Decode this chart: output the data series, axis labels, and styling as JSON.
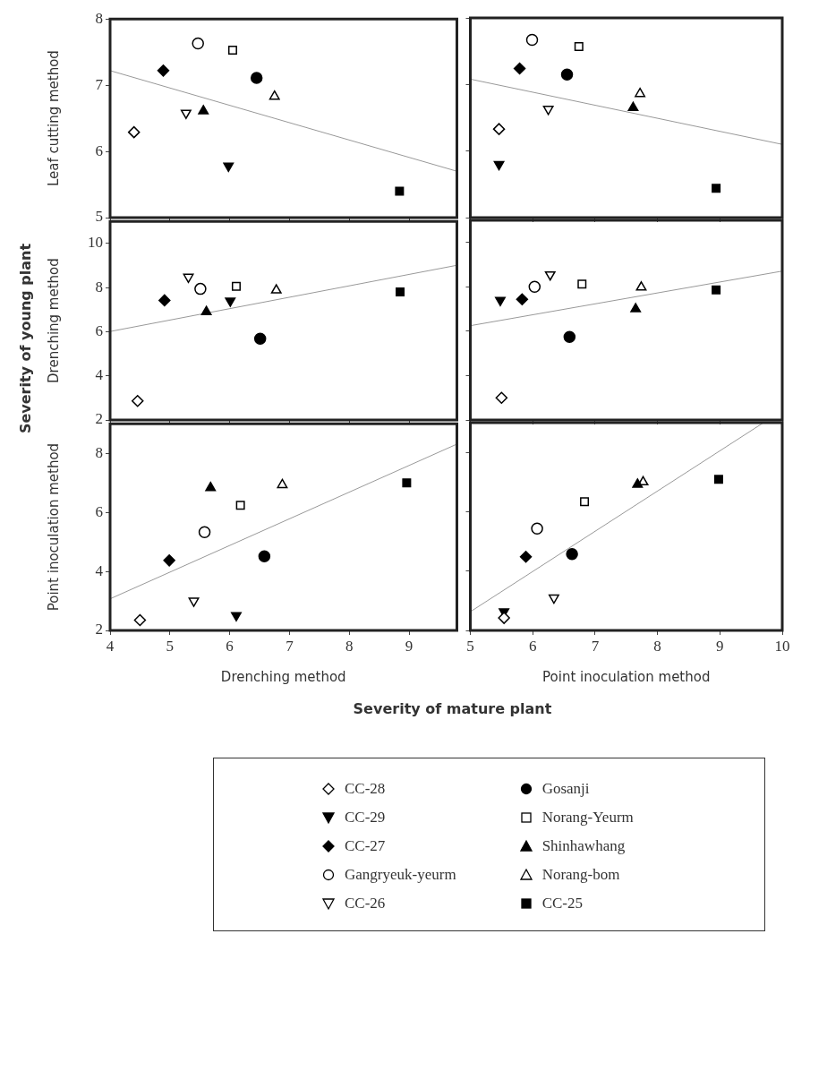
{
  "chart_data": [
    {
      "type": "scatter",
      "ylabel": "Leaf cutting method",
      "xlim": [
        4,
        9.8
      ],
      "xticks": [
        4,
        5,
        6,
        7,
        8,
        9
      ],
      "ylim": [
        5,
        8
      ],
      "yticks": [
        5,
        6,
        7,
        8
      ],
      "tick_labels": "y",
      "series": [
        {
          "marker": "diamond",
          "color": "#ffffff",
          "x": [
            4.4
          ],
          "values": [
            6.29
          ]
        },
        {
          "marker": "triangle-down",
          "color": "#000000",
          "x": [
            5.98
          ],
          "values": [
            5.78
          ]
        },
        {
          "marker": "diamond",
          "color": "#000000",
          "x": [
            4.89
          ],
          "values": [
            7.22
          ]
        },
        {
          "marker": "circle",
          "color": "#ffffff",
          "x": [
            5.47
          ],
          "values": [
            7.63
          ]
        },
        {
          "marker": "triangle-down",
          "color": "#ffffff",
          "x": [
            5.27
          ],
          "values": [
            6.58
          ]
        },
        {
          "marker": "circle",
          "color": "#000000",
          "x": [
            6.45
          ],
          "values": [
            7.11
          ]
        },
        {
          "marker": "square",
          "color": "#ffffff",
          "x": [
            6.05
          ],
          "values": [
            7.53
          ]
        },
        {
          "marker": "triangle",
          "color": "#000000",
          "x": [
            5.56
          ],
          "values": [
            6.61
          ]
        },
        {
          "marker": "triangle",
          "color": "#ffffff",
          "x": [
            6.75
          ],
          "values": [
            6.83
          ]
        },
        {
          "marker": "square",
          "color": "#000000",
          "x": [
            8.84
          ],
          "values": [
            5.4
          ]
        },
        {
          "type": "line",
          "marker": "none",
          "color": "#999999",
          "x": [
            4,
            9.8
          ],
          "values": [
            7.22,
            5.7
          ]
        }
      ]
    },
    {
      "type": "scatter",
      "xlim": [
        5,
        10
      ],
      "xticks": [
        5,
        6,
        7,
        8,
        9,
        10
      ],
      "ylim": [
        5,
        8
      ],
      "yticks": [
        5,
        6,
        7,
        8
      ],
      "tick_labels": false,
      "series": [
        {
          "marker": "diamond",
          "color": "#ffffff",
          "x": [
            5.46
          ],
          "values": [
            6.33
          ]
        },
        {
          "marker": "triangle-down",
          "color": "#000000",
          "x": [
            5.46
          ],
          "values": [
            5.8
          ]
        },
        {
          "marker": "diamond",
          "color": "#000000",
          "x": [
            5.79
          ],
          "values": [
            7.24
          ]
        },
        {
          "marker": "circle",
          "color": "#ffffff",
          "x": [
            5.99
          ],
          "values": [
            7.67
          ]
        },
        {
          "marker": "triangle-down",
          "color": "#ffffff",
          "x": [
            6.25
          ],
          "values": [
            6.63
          ]
        },
        {
          "marker": "circle",
          "color": "#000000",
          "x": [
            6.55
          ],
          "values": [
            7.15
          ]
        },
        {
          "marker": "square",
          "color": "#ffffff",
          "x": [
            6.74
          ],
          "values": [
            7.57
          ]
        },
        {
          "marker": "triangle",
          "color": "#000000",
          "x": [
            7.61
          ],
          "values": [
            6.65
          ]
        },
        {
          "marker": "triangle",
          "color": "#ffffff",
          "x": [
            7.72
          ],
          "values": [
            6.86
          ]
        },
        {
          "marker": "square",
          "color": "#000000",
          "x": [
            8.94
          ],
          "values": [
            5.44
          ]
        },
        {
          "type": "line",
          "marker": "none",
          "color": "#999999",
          "x": [
            5,
            10
          ],
          "values": [
            7.08,
            6.1
          ]
        }
      ]
    },
    {
      "type": "scatter",
      "ylabel": "Drenching method",
      "xlim": [
        4,
        9.8
      ],
      "xticks": [
        4,
        5,
        6,
        7,
        8,
        9
      ],
      "ylim": [
        2,
        11
      ],
      "yticks": [
        2,
        4,
        6,
        8,
        10
      ],
      "tick_labels": "y",
      "annotations": [
        "Severity of young plant"
      ],
      "series": [
        {
          "marker": "diamond",
          "color": "#ffffff",
          "x": [
            4.46
          ],
          "values": [
            2.86
          ]
        },
        {
          "marker": "triangle-down",
          "color": "#000000",
          "x": [
            6.01
          ],
          "values": [
            7.4
          ]
        },
        {
          "marker": "diamond",
          "color": "#000000",
          "x": [
            4.91
          ],
          "values": [
            7.42
          ]
        },
        {
          "marker": "circle",
          "color": "#ffffff",
          "x": [
            5.51
          ],
          "values": [
            7.94
          ]
        },
        {
          "marker": "triangle-down",
          "color": "#ffffff",
          "x": [
            5.31
          ],
          "values": [
            8.48
          ]
        },
        {
          "marker": "circle",
          "color": "#000000",
          "x": [
            6.51
          ],
          "values": [
            5.68
          ]
        },
        {
          "marker": "square",
          "color": "#ffffff",
          "x": [
            6.11
          ],
          "values": [
            8.06
          ]
        },
        {
          "marker": "triangle",
          "color": "#000000",
          "x": [
            5.61
          ],
          "values": [
            6.9
          ]
        },
        {
          "marker": "triangle",
          "color": "#ffffff",
          "x": [
            6.78
          ],
          "values": [
            7.88
          ]
        },
        {
          "marker": "square",
          "color": "#000000",
          "x": [
            8.85
          ],
          "values": [
            7.8
          ]
        },
        {
          "type": "line",
          "marker": "none",
          "color": "#999999",
          "x": [
            4,
            9.8
          ],
          "values": [
            6.01,
            9.01
          ]
        }
      ]
    },
    {
      "type": "scatter",
      "xlim": [
        5,
        10
      ],
      "xticks": [
        5,
        6,
        7,
        8,
        9,
        10
      ],
      "ylim": [
        2,
        11
      ],
      "yticks": [
        2,
        4,
        6,
        8,
        10
      ],
      "tick_labels": false,
      "series": [
        {
          "marker": "diamond",
          "color": "#ffffff",
          "x": [
            5.5
          ],
          "values": [
            3.0
          ]
        },
        {
          "marker": "triangle-down",
          "color": "#000000",
          "x": [
            5.48
          ],
          "values": [
            7.4
          ]
        },
        {
          "marker": "diamond",
          "color": "#000000",
          "x": [
            5.83
          ],
          "values": [
            7.44
          ]
        },
        {
          "marker": "circle",
          "color": "#ffffff",
          "x": [
            6.03
          ],
          "values": [
            8.0
          ]
        },
        {
          "marker": "triangle-down",
          "color": "#ffffff",
          "x": [
            6.28
          ],
          "values": [
            8.55
          ]
        },
        {
          "marker": "circle",
          "color": "#000000",
          "x": [
            6.59
          ],
          "values": [
            5.74
          ]
        },
        {
          "marker": "square",
          "color": "#ffffff",
          "x": [
            6.79
          ],
          "values": [
            8.12
          ]
        },
        {
          "marker": "triangle",
          "color": "#000000",
          "x": [
            7.65
          ],
          "values": [
            7.0
          ]
        },
        {
          "marker": "triangle",
          "color": "#ffffff",
          "x": [
            7.74
          ],
          "values": [
            7.98
          ]
        },
        {
          "marker": "square",
          "color": "#000000",
          "x": [
            8.94
          ],
          "values": [
            7.86
          ]
        },
        {
          "type": "line",
          "marker": "none",
          "color": "#999999",
          "x": [
            5,
            10
          ],
          "values": [
            6.25,
            8.71
          ]
        }
      ]
    },
    {
      "type": "scatter",
      "ylabel": "Point inoculation method",
      "xlabel": "Drenching method",
      "xlim": [
        4,
        9.8
      ],
      "xticks": [
        4,
        5,
        6,
        7,
        8,
        9
      ],
      "ylim": [
        2,
        9
      ],
      "yticks": [
        2,
        4,
        6,
        8
      ],
      "series": [
        {
          "marker": "diamond",
          "color": "#ffffff",
          "x": [
            4.5
          ],
          "values": [
            2.35
          ]
        },
        {
          "marker": "triangle-down",
          "color": "#000000",
          "x": [
            6.11
          ],
          "values": [
            2.51
          ]
        },
        {
          "marker": "diamond",
          "color": "#000000",
          "x": [
            4.99
          ],
          "values": [
            4.37
          ]
        },
        {
          "marker": "circle",
          "color": "#ffffff",
          "x": [
            5.58
          ],
          "values": [
            5.33
          ]
        },
        {
          "marker": "triangle-down",
          "color": "#ffffff",
          "x": [
            5.4
          ],
          "values": [
            3.0
          ]
        },
        {
          "marker": "circle",
          "color": "#000000",
          "x": [
            6.58
          ],
          "values": [
            4.51
          ]
        },
        {
          "marker": "square",
          "color": "#ffffff",
          "x": [
            6.18
          ],
          "values": [
            6.24
          ]
        },
        {
          "marker": "triangle",
          "color": "#000000",
          "x": [
            5.68
          ],
          "values": [
            6.83
          ]
        },
        {
          "marker": "triangle",
          "color": "#ffffff",
          "x": [
            6.88
          ],
          "values": [
            6.93
          ]
        },
        {
          "marker": "square",
          "color": "#000000",
          "x": [
            8.96
          ],
          "values": [
            7.0
          ]
        },
        {
          "type": "line",
          "marker": "none",
          "color": "#999999",
          "x": [
            4,
            9.8
          ],
          "values": [
            3.07,
            8.31
          ]
        }
      ]
    },
    {
      "type": "scatter",
      "xlabel": "Point inoculation method",
      "xlim": [
        5,
        10
      ],
      "xticks": [
        5,
        6,
        7,
        8,
        9,
        10
      ],
      "ylim": [
        2,
        9
      ],
      "yticks": [
        2,
        4,
        6,
        8
      ],
      "tick_labels": "x",
      "legend": "bottom",
      "annotations": [
        "Severity of mature plant"
      ],
      "series": [
        {
          "name": "CC-28",
          "marker": "diamond",
          "color": "#ffffff",
          "x": [
            5.54
          ],
          "values": [
            2.42
          ]
        },
        {
          "name": "CC-29",
          "marker": "triangle-down",
          "color": "#000000",
          "x": [
            5.54
          ],
          "values": [
            2.63
          ]
        },
        {
          "name": "CC-27",
          "marker": "diamond",
          "color": "#000000",
          "x": [
            5.89
          ],
          "values": [
            4.48
          ]
        },
        {
          "name": "Gangryeuk-yeurm",
          "marker": "circle",
          "color": "#ffffff",
          "x": [
            6.07
          ],
          "values": [
            5.43
          ]
        },
        {
          "name": "CC-26",
          "marker": "triangle-down",
          "color": "#ffffff",
          "x": [
            6.34
          ],
          "values": [
            3.1
          ]
        },
        {
          "name": "Gosanji",
          "marker": "circle",
          "color": "#000000",
          "x": [
            6.63
          ],
          "values": [
            4.57
          ]
        },
        {
          "name": "Norang-Yeurm",
          "marker": "square",
          "color": "#ffffff",
          "x": [
            6.83
          ],
          "values": [
            6.34
          ]
        },
        {
          "name": "Shinhawhang",
          "marker": "triangle",
          "color": "#000000",
          "x": [
            7.68
          ],
          "values": [
            6.92
          ]
        },
        {
          "name": "Norang-bom",
          "marker": "triangle",
          "color": "#ffffff",
          "x": [
            7.77
          ],
          "values": [
            7.0
          ]
        },
        {
          "name": "CC-25",
          "marker": "square",
          "color": "#000000",
          "x": [
            8.98
          ],
          "values": [
            7.09
          ]
        },
        {
          "type": "line",
          "marker": "none",
          "color": "#999999",
          "x": [
            5,
            9.7
          ],
          "values": [
            2.63,
            9
          ]
        }
      ]
    }
  ]
}
